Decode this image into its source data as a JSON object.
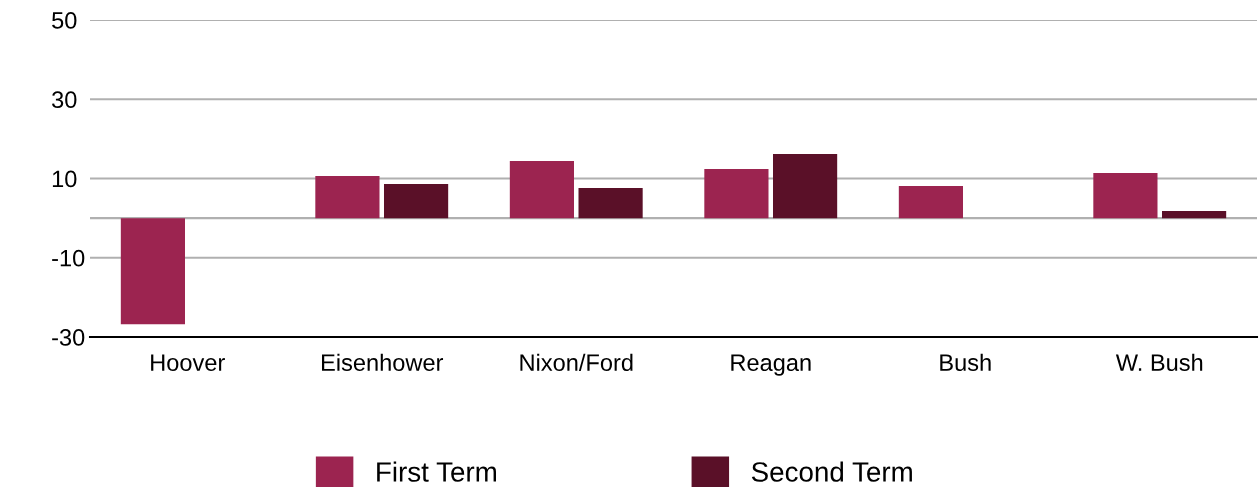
{
  "chart_data": {
    "type": "bar",
    "categories": [
      "Hoover",
      "Eisenhower",
      "Nixon/Ford",
      "Reagan",
      "Bush",
      "W. Bush"
    ],
    "series": [
      {
        "name": "First Term",
        "color": "#9c2450",
        "values": [
          -26.8,
          10.6,
          14.4,
          12.4,
          8.1,
          11.4
        ]
      },
      {
        "name": "Second Term",
        "color": "#5a1028",
        "values": [
          null,
          8.6,
          7.6,
          16.2,
          null,
          1.8
        ]
      }
    ],
    "ylim": [
      -30,
      50
    ],
    "yticks": [
      -30,
      -10,
      {
        "value": 0,
        "label": null
      },
      10,
      30,
      50
    ],
    "grid": "y",
    "legend": "bottom"
  }
}
